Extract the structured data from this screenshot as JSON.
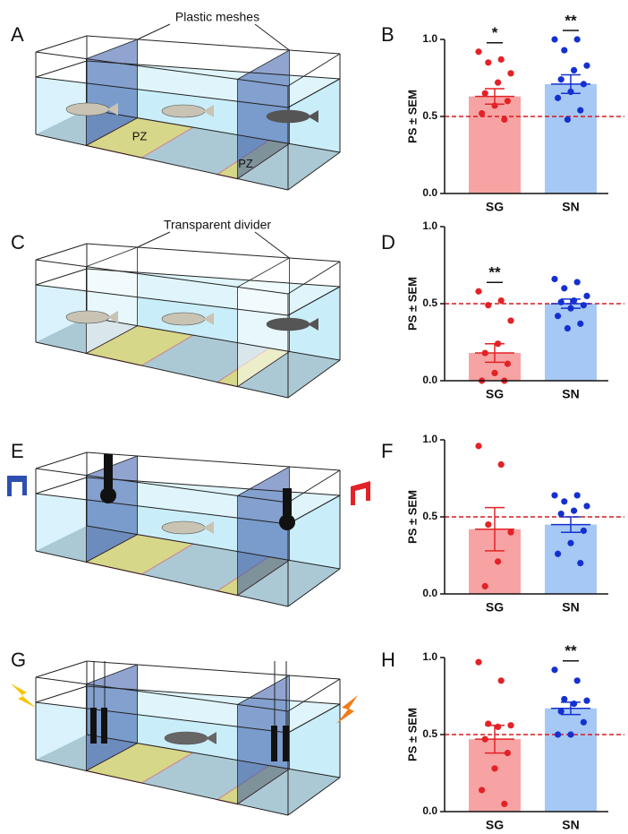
{
  "chart_data": [
    {
      "type": "bar",
      "panel": "B",
      "ylabel": "PS ± SEM",
      "categories": [
        "SG",
        "SN"
      ],
      "values": [
        0.63,
        0.71
      ],
      "errors": [
        0.05,
        0.06
      ],
      "colors": [
        "#f7a3a3",
        "#a6c8f4"
      ],
      "point_colors": [
        "#e32227",
        "#1530d0"
      ],
      "points": [
        [
          0.92,
          0.87,
          0.85,
          0.78,
          0.72,
          0.65,
          0.6,
          0.57,
          0.52,
          0.48
        ],
        [
          1.0,
          1.0,
          0.93,
          0.83,
          0.8,
          0.74,
          0.71,
          0.66,
          0.62,
          0.54,
          0.48
        ]
      ],
      "significance": [
        "*",
        "**"
      ],
      "reference_line": 0.5,
      "reference_color": "#d71920",
      "ylim": [
        0,
        1
      ],
      "yticks": [
        {
          "value": 0,
          "label": "0.0"
        },
        0.5,
        {
          "value": 1,
          "label": "1.0"
        }
      ]
    },
    {
      "type": "bar",
      "panel": "D",
      "ylabel": "PS ± SEM",
      "categories": [
        "SG",
        "SN"
      ],
      "values": [
        0.18,
        0.5
      ],
      "errors": [
        0.06,
        0.03
      ],
      "colors": [
        "#f7a3a3",
        "#a6c8f4"
      ],
      "point_colors": [
        "#e32227",
        "#1530d0"
      ],
      "points": [
        [
          0.58,
          0.52,
          0.49,
          0.39,
          0.24,
          0.18,
          0.11,
          0.05,
          0.0,
          0.0
        ],
        [
          0.66,
          0.64,
          0.6,
          0.55,
          0.52,
          0.51,
          0.49,
          0.47,
          0.42,
          0.37,
          0.34
        ]
      ],
      "significance": [
        "**",
        null
      ],
      "reference_line": 0.5,
      "reference_color": "#d71920",
      "ylim": [
        0,
        1
      ],
      "yticks": [
        {
          "value": 0,
          "label": "0.0"
        },
        0.5,
        {
          "value": 1,
          "label": "1.0"
        }
      ]
    },
    {
      "type": "bar",
      "panel": "F",
      "ylabel": "PS ± SEM",
      "categories": [
        "SG",
        "SN"
      ],
      "values": [
        0.42,
        0.45
      ],
      "errors": [
        0.14,
        0.05
      ],
      "colors": [
        "#f7a3a3",
        "#a6c8f4"
      ],
      "point_colors": [
        "#e32227",
        "#1530d0"
      ],
      "points": [
        [
          0.96,
          0.84,
          0.45,
          0.4,
          0.21,
          0.05
        ],
        [
          0.64,
          0.64,
          0.6,
          0.57,
          0.54,
          0.52,
          0.41,
          0.33,
          0.26,
          0.2
        ]
      ],
      "significance": [
        null,
        null
      ],
      "reference_line": 0.5,
      "reference_color": "#d71920",
      "ylim": [
        0,
        1
      ],
      "yticks": [
        {
          "value": 0,
          "label": "0.0"
        },
        0.5,
        {
          "value": 1,
          "label": "1.0"
        }
      ]
    },
    {
      "type": "bar",
      "panel": "H",
      "ylabel": "PS ± SEM",
      "categories": [
        "SG",
        "SN"
      ],
      "values": [
        0.47,
        0.67
      ],
      "errors": [
        0.09,
        0.04
      ],
      "colors": [
        "#f7a3a3",
        "#a6c8f4"
      ],
      "point_colors": [
        "#e32227",
        "#1530d0"
      ],
      "points": [
        [
          0.97,
          0.85,
          0.57,
          0.56,
          0.55,
          0.47,
          0.38,
          0.28,
          0.14,
          0.05
        ],
        [
          0.92,
          0.85,
          0.73,
          0.72,
          0.7,
          0.65,
          0.58,
          0.5,
          0.5
        ]
      ],
      "significance": [
        null,
        "**"
      ],
      "reference_line": 0.5,
      "reference_color": "#d71920",
      "ylim": [
        0,
        1
      ],
      "yticks": [
        {
          "value": 0,
          "label": "0.0"
        },
        0.5,
        {
          "value": 1,
          "label": "1.0"
        }
      ]
    }
  ],
  "diagrams": [
    {
      "panel": "A",
      "callout": "Plastic meshes",
      "zone_labels": [
        "PZ",
        "PZ"
      ]
    },
    {
      "panel": "C",
      "callout": "Transparent divider"
    },
    {
      "panel": "E"
    },
    {
      "panel": "G"
    }
  ]
}
